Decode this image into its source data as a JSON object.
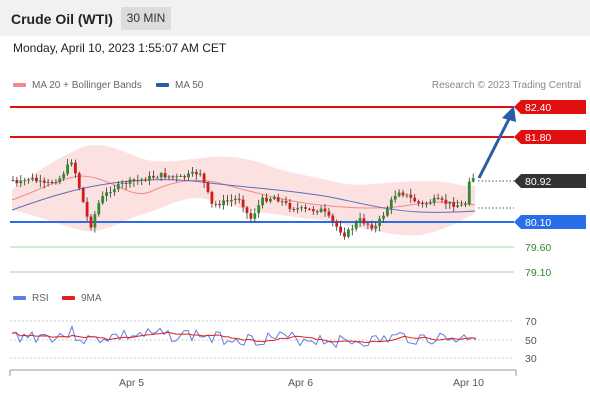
{
  "header": {
    "instrument": "Crude Oil (WTI)",
    "interval": "30 MIN"
  },
  "timestamp": "Monday, April 10, 2023 1:55:07 AM CET",
  "legend": {
    "ma20": {
      "label": "MA 20 + Bollinger Bands",
      "color": "#f08a8a"
    },
    "ma50": {
      "label": "MA 50",
      "color": "#2a5ca8"
    }
  },
  "credit": "Research © 2023 Trading Central",
  "rsi_legend": {
    "rsi": {
      "label": "RSI",
      "color": "#5b7fe0"
    },
    "ma9": {
      "label": "9MA",
      "color": "#e02020"
    }
  },
  "levels": [
    {
      "value": "82.40",
      "type": "resistance",
      "color": "#e01010"
    },
    {
      "value": "81.80",
      "type": "resistance",
      "color": "#e01010"
    },
    {
      "value": "80.92",
      "type": "current",
      "color": "#333333"
    },
    {
      "value": "80.10",
      "type": "pivot",
      "color": "#2a6de8"
    },
    {
      "value": "79.60",
      "type": "support",
      "color": "#2e8b2e"
    },
    {
      "value": "79.10",
      "type": "support",
      "color": "#2e8b2e"
    }
  ],
  "rsi_axis": [
    "70",
    "50",
    "30"
  ],
  "x_axis": [
    "Apr 5",
    "Apr 6",
    "Apr 10"
  ],
  "chart_data": {
    "type": "candlestick",
    "y_range": [
      78.9,
      82.6
    ],
    "x_labels": [
      "Apr 5",
      "Apr 6",
      "Apr 10"
    ],
    "current_price": 80.92,
    "pivot": 80.1,
    "resistance": [
      82.4,
      81.8
    ],
    "support": [
      79.6,
      79.1
    ],
    "rsi_levels": [
      70,
      50,
      30
    ]
  }
}
